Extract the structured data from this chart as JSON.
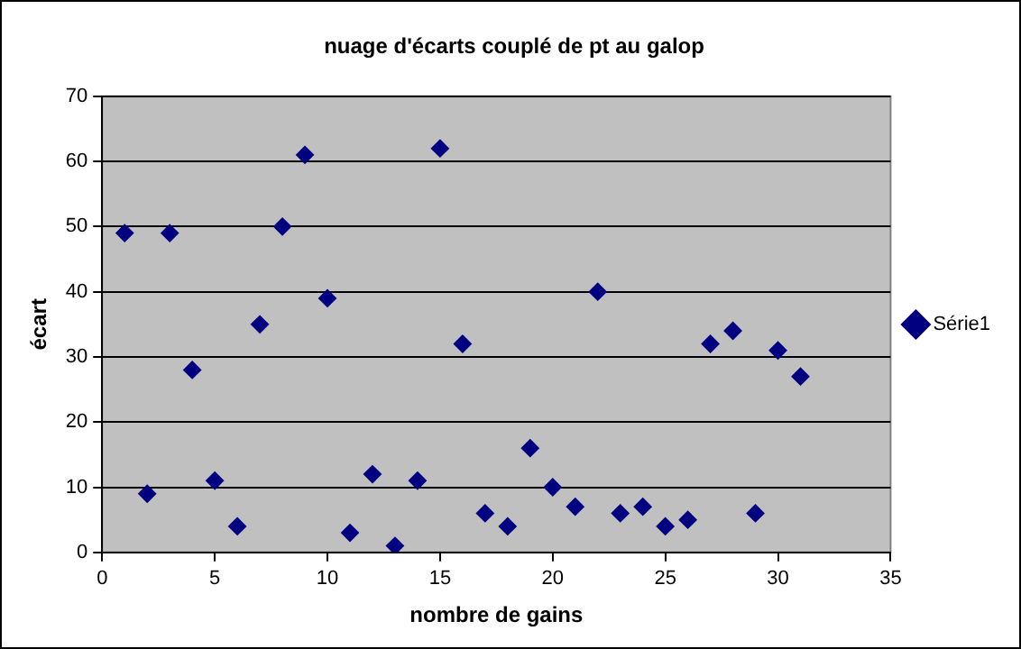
{
  "chart_data": {
    "type": "scatter",
    "title": "nuage d'écarts couplé de pt au galop",
    "xlabel": "nombre de gains",
    "ylabel": "écart",
    "x": [
      1,
      2,
      3,
      4,
      5,
      6,
      7,
      8,
      9,
      10,
      11,
      12,
      13,
      14,
      15,
      16,
      17,
      18,
      19,
      20,
      21,
      22,
      23,
      24,
      25,
      26,
      27,
      28,
      29,
      30,
      31
    ],
    "series": [
      {
        "name": "Série1",
        "color": "#000080",
        "values": [
          49,
          9,
          49,
          28,
          11,
          4,
          35,
          50,
          61,
          39,
          3,
          12,
          1,
          11,
          62,
          32,
          6,
          4,
          16,
          10,
          7,
          40,
          6,
          7,
          4,
          5,
          32,
          34,
          6,
          31,
          27
        ]
      }
    ],
    "xlim": [
      0,
      35
    ],
    "xticks": [
      0,
      5,
      10,
      15,
      20,
      25,
      30,
      35
    ],
    "ylim": [
      0,
      70
    ],
    "yticks": [
      0,
      10,
      20,
      30,
      40,
      50,
      60,
      70
    ],
    "grid": "y",
    "legend": "right",
    "marker": "diamond"
  }
}
